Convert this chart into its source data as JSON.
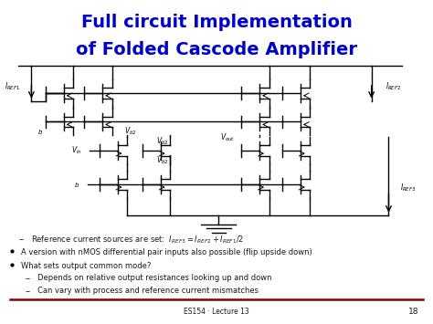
{
  "title_line1": "Full circuit Implementation",
  "title_line2": "of Folded Cascode Amplifier",
  "title_color": "#0000CC",
  "title_fontsize": 14,
  "bg_color": "#FFFFFF",
  "bullet1": "A version with nMOS differential pair inputs also possible (flip upside down)",
  "bullet2": "What sets output common mode?",
  "sub1": "Depends on relative output resistances looking up and down",
  "sub2": "Can vary with process and reference current mismatches",
  "footer_text": "ES154 · Lecture 13",
  "footer_page": "18",
  "divider_color": "#8B0000",
  "text_color": "#1a1a1a"
}
